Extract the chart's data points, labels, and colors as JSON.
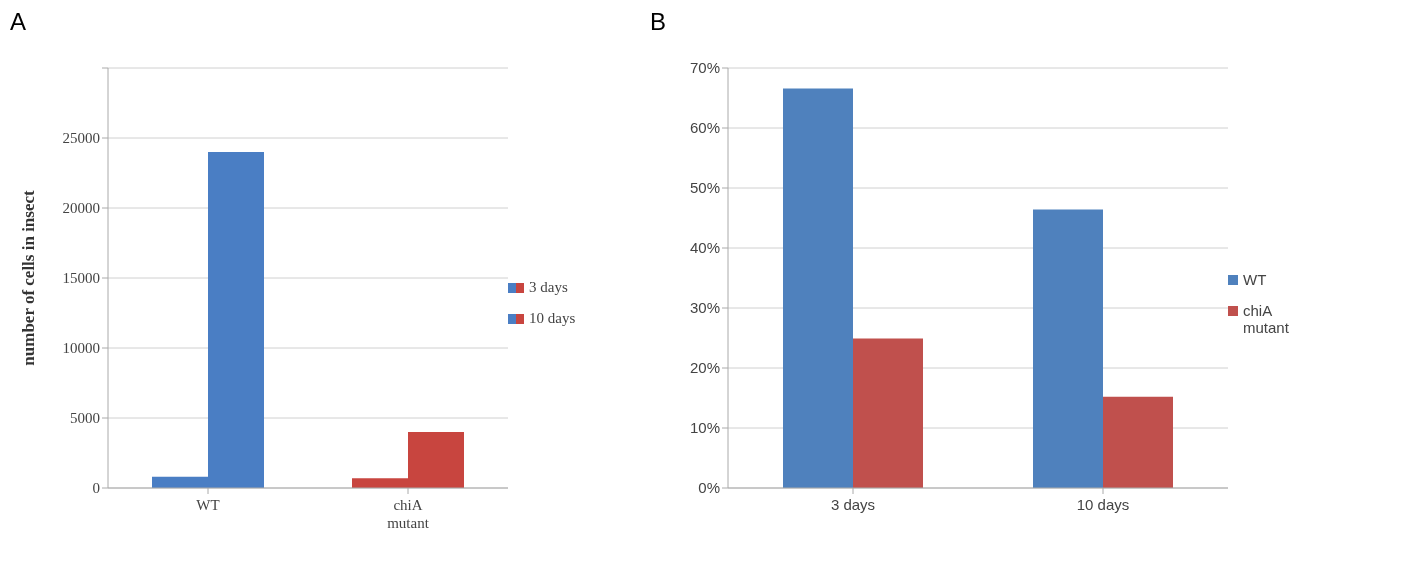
{
  "chart_data": [
    {
      "type": "bar",
      "title": "A",
      "ylabel": "number of cells in insect",
      "categories": [
        "WT",
        "chiA mutant"
      ],
      "series": [
        {
          "name": "3 days",
          "colors": [
            "#4a7ec4",
            "#c8453f"
          ],
          "values": [
            800,
            700
          ]
        },
        {
          "name": "10 days",
          "colors": [
            "#4a7ec4",
            "#c8453f"
          ],
          "values": [
            24000,
            4000
          ]
        }
      ],
      "ylim": [
        0,
        30000
      ],
      "yticks": [
        0,
        5000,
        10000,
        15000,
        20000,
        25000,
        {
          "value": 30000,
          "label": null
        }
      ],
      "grid": "y",
      "legend": "right"
    },
    {
      "type": "bar",
      "title": "B",
      "categories": [
        "3 days",
        "10 days"
      ],
      "series": [
        {
          "name": "WT",
          "color": "#4f81bd",
          "values": [
            66.6,
            46.4
          ]
        },
        {
          "name": "chiA mutant",
          "color": "#c0504d",
          "values": [
            24.9,
            15.2
          ]
        }
      ],
      "ylim": [
        0,
        70
      ],
      "yticks": [
        {
          "value": 0,
          "label": "0%"
        },
        {
          "value": 10,
          "label": "10%"
        },
        {
          "value": 20,
          "label": "20%"
        },
        {
          "value": 30,
          "label": "30%"
        },
        {
          "value": 40,
          "label": "40%"
        },
        {
          "value": 50,
          "label": "50%"
        },
        {
          "value": 60,
          "label": "60%"
        },
        {
          "value": 70,
          "label": "70%"
        }
      ],
      "grid": "y",
      "legend": "right"
    }
  ]
}
